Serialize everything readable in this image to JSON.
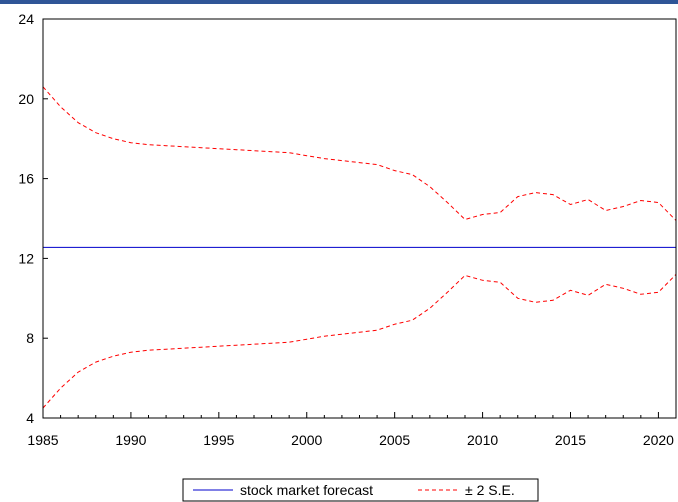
{
  "chart_data": {
    "type": "line",
    "title": "",
    "xlabel": "",
    "ylabel": "",
    "xlim": [
      1985,
      2021
    ],
    "ylim": [
      4,
      24
    ],
    "grid": false,
    "legend_position": "bottom-center",
    "x_ticks": [
      1985,
      1990,
      1995,
      2000,
      2005,
      2010,
      2015,
      2020
    ],
    "y_ticks": [
      4,
      8,
      12,
      16,
      20,
      24
    ],
    "series": [
      {
        "name": "stock market forecast",
        "color": "#0000cc",
        "style": "solid",
        "x": [
          1985,
          2021
        ],
        "y": [
          12.55,
          12.55
        ]
      },
      {
        "name": "± 2 S.E.",
        "color": "#ff0000",
        "style": "dashed",
        "x": [
          1985,
          1986,
          1987,
          1988,
          1989,
          1990,
          1991,
          1992,
          1993,
          1994,
          1995,
          1996,
          1997,
          1998,
          1999,
          2000,
          2001,
          2002,
          2003,
          2004,
          2005,
          2006,
          2007,
          2008,
          2009,
          2010,
          2011,
          2012,
          2013,
          2014,
          2015,
          2016,
          2017,
          2018,
          2019,
          2020,
          2021
        ],
        "upper": [
          20.6,
          19.6,
          18.8,
          18.3,
          18.0,
          17.8,
          17.7,
          17.65,
          17.6,
          17.55,
          17.5,
          17.45,
          17.4,
          17.35,
          17.3,
          17.15,
          17.0,
          16.9,
          16.8,
          16.7,
          16.4,
          16.2,
          15.6,
          14.8,
          13.95,
          14.2,
          14.3,
          15.1,
          15.3,
          15.2,
          14.7,
          14.95,
          14.4,
          14.6,
          14.9,
          14.8,
          13.9
        ],
        "lower": [
          4.5,
          5.5,
          6.3,
          6.8,
          7.1,
          7.3,
          7.4,
          7.45,
          7.5,
          7.55,
          7.6,
          7.65,
          7.7,
          7.75,
          7.8,
          7.95,
          8.1,
          8.2,
          8.3,
          8.4,
          8.7,
          8.9,
          9.5,
          10.3,
          11.15,
          10.9,
          10.8,
          10.0,
          9.8,
          9.9,
          10.4,
          10.15,
          10.7,
          10.5,
          10.2,
          10.3,
          11.2
        ]
      }
    ]
  }
}
